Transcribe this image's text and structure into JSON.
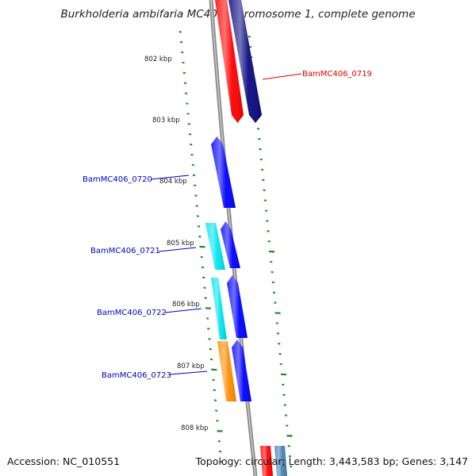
{
  "title": "Burkholderia ambifaria MC40-6 chromosome 1, complete genome",
  "accession": "Accession: NC_010551",
  "topology": "Topology: circular; Length: 3,443,583 bp; Genes: 3,147",
  "colors": {
    "backbone": "#8c8c8c",
    "tick": "#1f8a1f",
    "red": "#ff0000",
    "navy": "#0a0a80",
    "blue": "#0000ff",
    "cyan": "#00e5ee",
    "orange": "#ff8c00",
    "steel": "#4682b4",
    "label_blue": "#0000c8",
    "label_red": "#e00000"
  },
  "scale_labels": [
    "802 kbp",
    "803 kbp",
    "804 kbp",
    "805 kbp",
    "806 kbp",
    "807 kbp",
    "808 kbp"
  ],
  "gene_labels": [
    {
      "text": "BamMC406_0719",
      "color": "red"
    },
    {
      "text": "BamMC406_0720",
      "color": "blue"
    },
    {
      "text": "BamMC406_0721",
      "color": "blue"
    },
    {
      "text": "BamMC406_0722",
      "color": "blue"
    },
    {
      "text": "BamMC406_0723",
      "color": "blue"
    }
  ],
  "features": [
    {
      "color": "red"
    },
    {
      "color": "navy"
    },
    {
      "color": "blue"
    },
    {
      "color": "cyan"
    },
    {
      "color": "blue"
    },
    {
      "color": "cyan"
    },
    {
      "color": "blue"
    },
    {
      "color": "orange"
    },
    {
      "color": "blue"
    },
    {
      "color": "red"
    },
    {
      "color": "steel"
    }
  ]
}
